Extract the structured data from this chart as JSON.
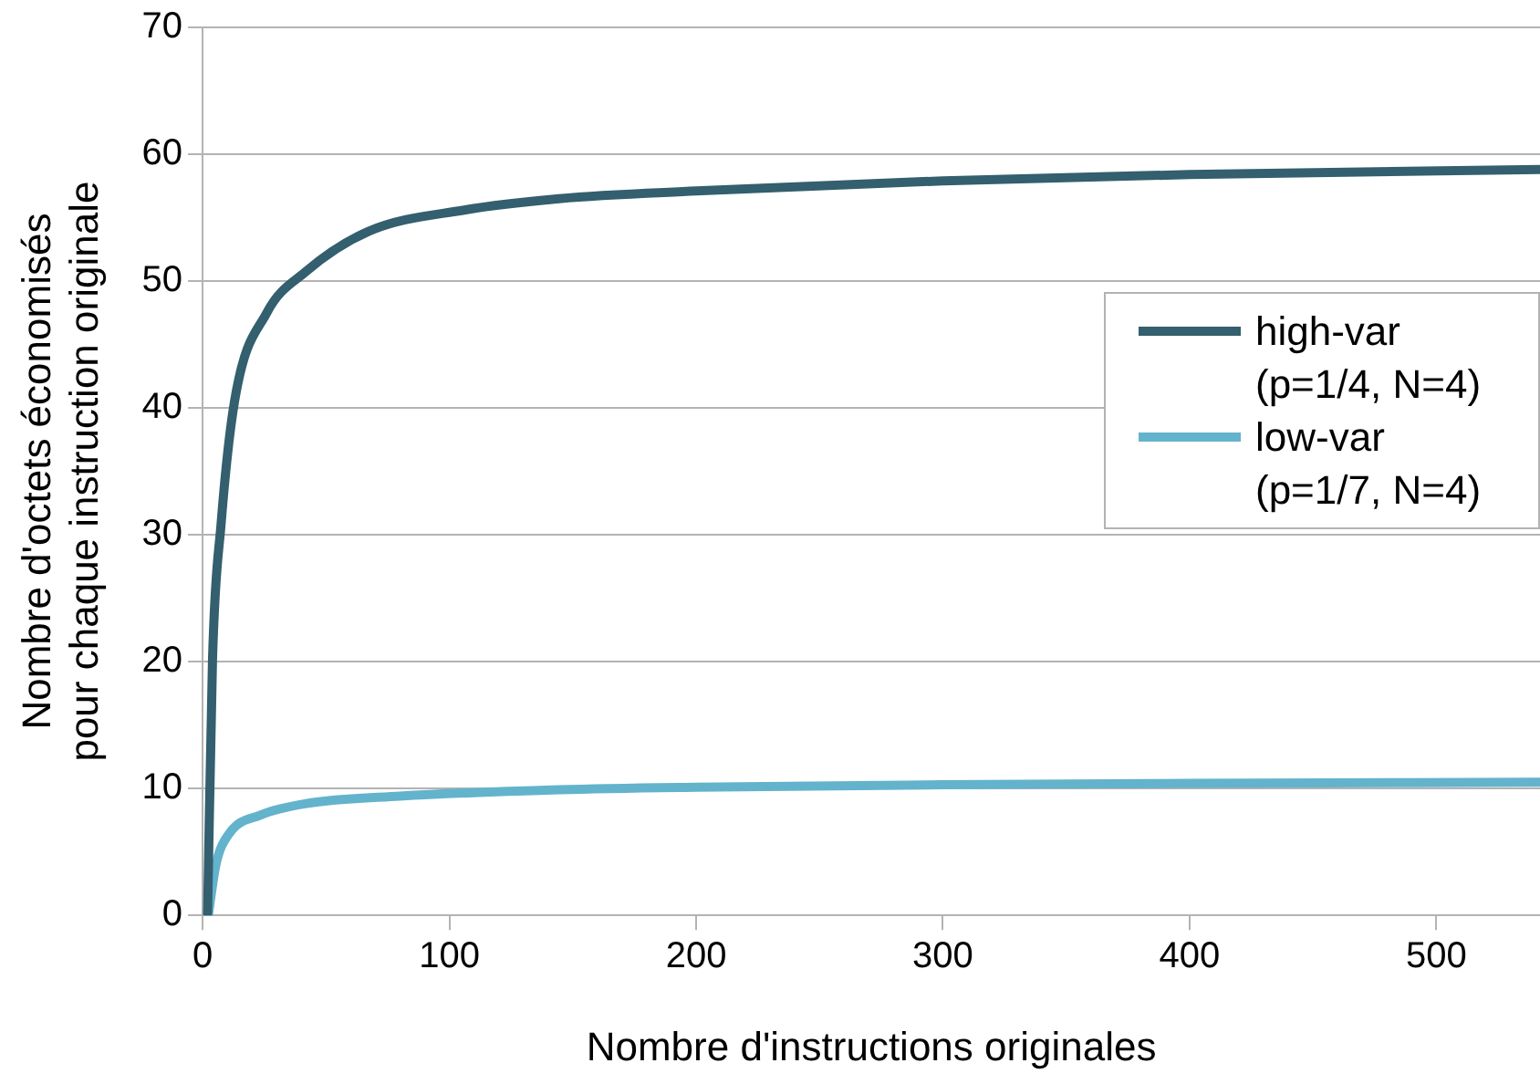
{
  "chart_data": {
    "type": "line",
    "xlabel": "Nombre d'instructions originales",
    "ylabel": "Nombre d'octets économisés\npour chaque instruction originale",
    "xlim": [
      0,
      542
    ],
    "xticks": [
      0,
      100,
      200,
      300,
      400,
      500
    ],
    "ylim": [
      0,
      70
    ],
    "yticks": [
      0,
      10,
      20,
      30,
      40,
      50,
      60,
      70
    ],
    "grid": "y",
    "legend": "right",
    "marker": "none",
    "line_style": "solid",
    "series": [
      {
        "name": "high-var (p=1/4, N=4)",
        "color": "#335f6e",
        "x": [
          2,
          4,
          7.5,
          13,
          26,
          41.5,
          67,
          106,
          144.5,
          200,
          300,
          400,
          542
        ],
        "values": [
          0,
          20.1,
          30.9,
          40.6,
          47.5,
          50.7,
          53.9,
          55.6,
          56.5,
          57.1,
          57.9,
          58.4,
          58.8
        ]
      },
      {
        "name": "low-var (p=1/7, N=4)",
        "color": "#63b3cc",
        "x": [
          2.3,
          5.4,
          10.6,
          23.4,
          41.5,
          80,
          144.5,
          200,
          300,
          400,
          542
        ],
        "values": [
          0,
          4.0,
          6.4,
          7.9,
          8.8,
          9.4,
          9.9,
          10.1,
          10.3,
          10.4,
          10.5
        ]
      }
    ]
  }
}
